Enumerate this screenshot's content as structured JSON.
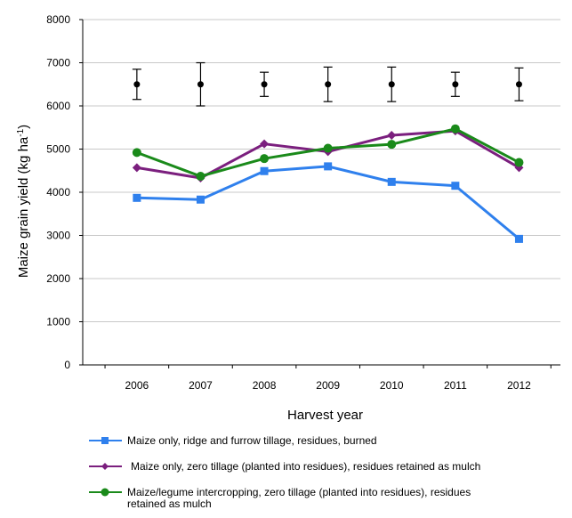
{
  "chart_data": {
    "type": "line",
    "title": "",
    "xlabel": "Harvest year",
    "ylabel_main": "Maize grain yield (kg ha",
    "ylabel_sup": "-1",
    "ylabel_close": ")",
    "ylim": [
      0,
      8000
    ],
    "yticks": [
      0,
      1000,
      2000,
      3000,
      4000,
      5000,
      6000,
      7000,
      8000
    ],
    "categories": [
      "2006",
      "2007",
      "2008",
      "2009",
      "2010",
      "2011",
      "2012"
    ],
    "grid": true,
    "series": [
      {
        "name": "Maize only, ridge and furrow tillage, residues, burned",
        "color": "#2f80ed",
        "marker": "square",
        "values": [
          3870,
          3830,
          4490,
          4600,
          4240,
          4150,
          2920
        ]
      },
      {
        "name": "Maize only, zero tillage (planted into residues), residues retained as mulch",
        "color": "#7b1f7e",
        "marker": "diamond",
        "values": [
          4570,
          4330,
          5120,
          4940,
          5320,
          5420,
          4570
        ]
      },
      {
        "name": "Maize/legume intercropping, zero tillage (planted into residues), residues retained as mulch",
        "name_line1": "Maize/legume intercropping, zero tillage (planted into residues), residues",
        "name_line2": "retained as mulch",
        "color": "#1a8a1a",
        "marker": "circle",
        "values": [
          4920,
          4370,
          4780,
          5020,
          5110,
          5470,
          4690
        ]
      }
    ],
    "error_points": {
      "color": "#000000",
      "values": [
        6500,
        6500,
        6500,
        6500,
        6500,
        6500,
        6500
      ],
      "upper": [
        6850,
        7000,
        6780,
        6900,
        6900,
        6780,
        6880
      ],
      "lower": [
        6150,
        6000,
        6220,
        6100,
        6100,
        6220,
        6120
      ]
    },
    "legend_position": "bottom"
  }
}
